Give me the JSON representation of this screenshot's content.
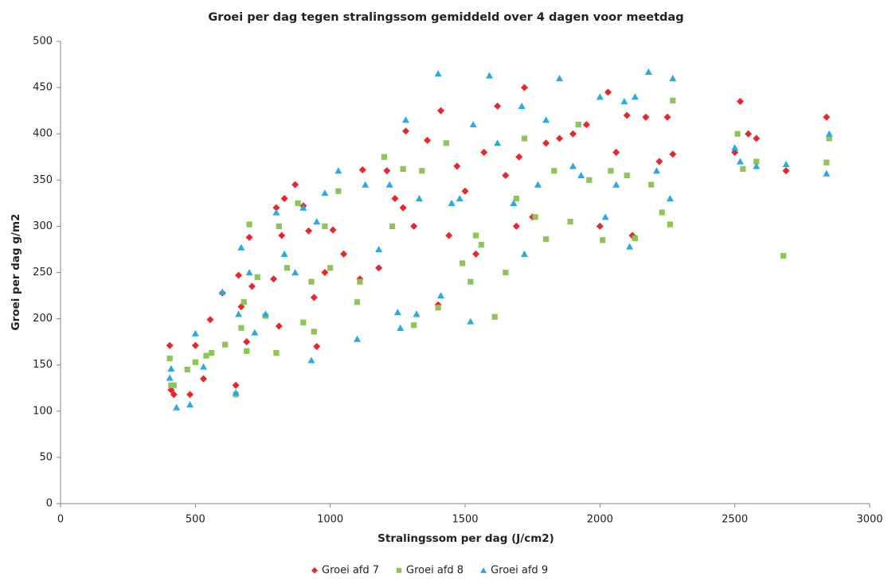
{
  "chart_data": {
    "type": "scatter",
    "title": "Groei per dag tegen stralingssom gemiddeld over 4 dagen voor meetdag",
    "x_label": "Stralingssom per dag (J/cm2)",
    "y_label": "Groei per dag g/m2",
    "xlim": [
      0,
      3000
    ],
    "xticks": [
      0,
      500,
      1000,
      1500,
      2000,
      2500,
      3000
    ],
    "ylim": [
      0,
      500
    ],
    "yticks": [
      0,
      50,
      100,
      150,
      200,
      250,
      300,
      350,
      400,
      450,
      500
    ],
    "grid": false,
    "legend": "bottom",
    "series": [
      {
        "name": "Groei afd 7",
        "color": "#e8262b",
        "marker": "diamond",
        "x": [
          405,
          410,
          420,
          480,
          500,
          530,
          555,
          600,
          650,
          660,
          670,
          690,
          700,
          710,
          790,
          800,
          810,
          820,
          830,
          870,
          900,
          920,
          940,
          950,
          980,
          1010,
          1050,
          1110,
          1120,
          1180,
          1210,
          1240,
          1270,
          1280,
          1310,
          1360,
          1400,
          1410,
          1440,
          1470,
          1500,
          1540,
          1570,
          1620,
          1650,
          1690,
          1700,
          1720,
          1750,
          1800,
          1850,
          1900,
          1950,
          2000,
          2030,
          2060,
          2100,
          2120,
          2170,
          2220,
          2250,
          2270,
          2500,
          2520,
          2550,
          2580,
          2690,
          2840
        ],
        "values": [
          171,
          123,
          118,
          118,
          171,
          135,
          199,
          228,
          128,
          247,
          213,
          175,
          288,
          235,
          243,
          320,
          192,
          290,
          330,
          345,
          322,
          295,
          223,
          170,
          250,
          296,
          270,
          243,
          361,
          255,
          360,
          330,
          320,
          403,
          300,
          393,
          215,
          425,
          290,
          365,
          338,
          270,
          380,
          430,
          355,
          300,
          375,
          450,
          310,
          390,
          395,
          400,
          410,
          300,
          445,
          380,
          420,
          290,
          418,
          370,
          418,
          378,
          380,
          435,
          400,
          395,
          360,
          418
        ]
      },
      {
        "name": "Groei afd 8",
        "color": "#8dc556",
        "marker": "square",
        "x": [
          405,
          410,
          420,
          470,
          500,
          540,
          560,
          610,
          650,
          670,
          680,
          690,
          700,
          730,
          760,
          800,
          810,
          840,
          880,
          900,
          930,
          940,
          980,
          1000,
          1030,
          1100,
          1110,
          1200,
          1230,
          1270,
          1310,
          1340,
          1400,
          1430,
          1490,
          1520,
          1540,
          1560,
          1610,
          1650,
          1690,
          1720,
          1760,
          1800,
          1830,
          1890,
          1920,
          1960,
          2010,
          2040,
          2100,
          2130,
          2190,
          2230,
          2260,
          2270,
          2510,
          2530,
          2580,
          2680,
          2840,
          2850
        ],
        "values": [
          157,
          128,
          128,
          145,
          153,
          160,
          163,
          172,
          118,
          190,
          218,
          165,
          302,
          245,
          203,
          163,
          300,
          255,
          325,
          196,
          240,
          186,
          300,
          255,
          338,
          218,
          240,
          375,
          300,
          362,
          193,
          360,
          212,
          390,
          260,
          240,
          290,
          280,
          202,
          250,
          330,
          395,
          310,
          286,
          360,
          305,
          410,
          350,
          285,
          360,
          355,
          287,
          345,
          315,
          302,
          436,
          400,
          362,
          370,
          268,
          369,
          395
        ]
      },
      {
        "name": "Groei afd 9",
        "color": "#29abe2",
        "marker": "triangle",
        "x": [
          405,
          410,
          430,
          480,
          500,
          530,
          600,
          650,
          660,
          670,
          700,
          720,
          760,
          800,
          830,
          870,
          900,
          930,
          950,
          980,
          1030,
          1100,
          1130,
          1180,
          1220,
          1250,
          1260,
          1280,
          1320,
          1330,
          1400,
          1410,
          1450,
          1480,
          1520,
          1530,
          1590,
          1620,
          1680,
          1710,
          1720,
          1770,
          1800,
          1850,
          1900,
          1930,
          2000,
          2020,
          2060,
          2090,
          2110,
          2130,
          2180,
          2210,
          2260,
          2270,
          2500,
          2520,
          2580,
          2690,
          2840,
          2850
        ],
        "values": [
          136,
          146,
          104,
          107,
          184,
          148,
          229,
          120,
          205,
          277,
          250,
          185,
          205,
          315,
          270,
          250,
          320,
          155,
          305,
          336,
          360,
          178,
          345,
          275,
          345,
          207,
          190,
          415,
          205,
          330,
          465,
          225,
          325,
          330,
          197,
          410,
          463,
          390,
          325,
          430,
          270,
          345,
          415,
          460,
          365,
          355,
          440,
          310,
          345,
          435,
          278,
          440,
          467,
          360,
          330,
          460,
          385,
          370,
          365,
          367,
          357,
          400
        ]
      }
    ]
  }
}
